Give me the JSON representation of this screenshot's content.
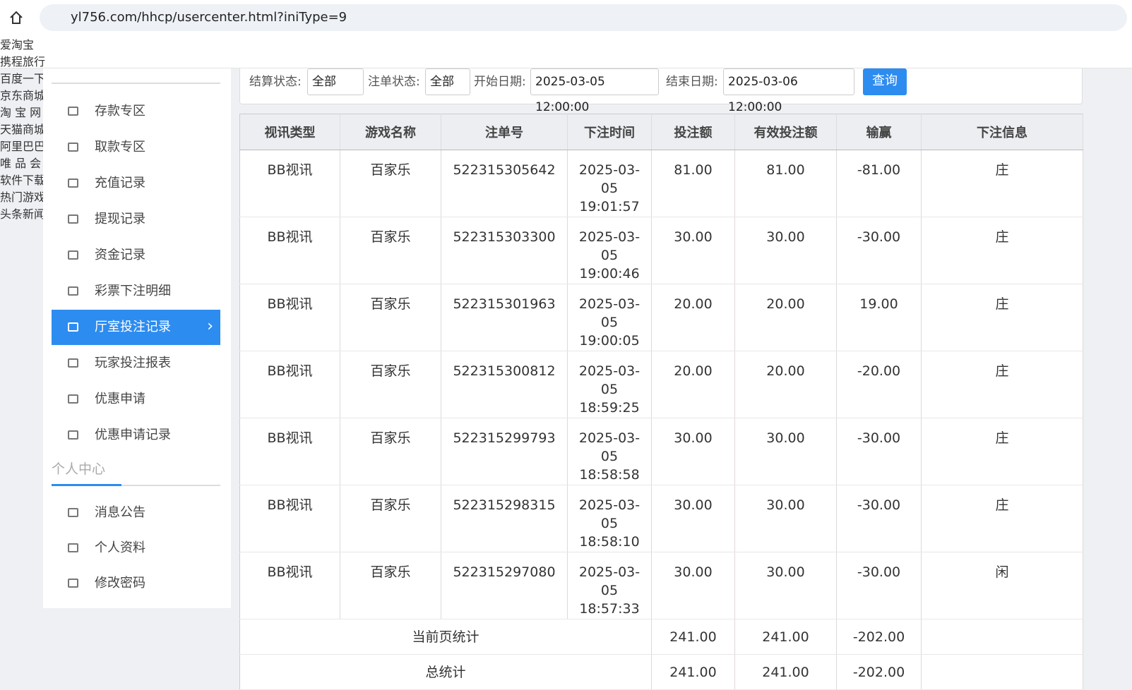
{
  "browser": {
    "url": "yl756.com/hhcp/usercenter.html?iniType=9",
    "bookmarks": [
      "爱淘宝",
      "携程旅行",
      "百度一下",
      "京东商城",
      "淘 宝 网",
      "天猫商城",
      "阿里巴巴",
      "唯 品 会",
      "软件下载",
      "热门游戏",
      "头条新闻"
    ]
  },
  "sidebar": {
    "menu": [
      "存款专区",
      "取款专区",
      "充值记录",
      "提现记录",
      "资金记录",
      "彩票下注明细",
      "厅室投注记录",
      "玩家投注报表",
      "优惠申请",
      "优惠申请记录"
    ],
    "active": 6,
    "section": "个人中心",
    "personal": [
      "消息公告",
      "个人资料",
      "修改密码"
    ]
  },
  "filters": {
    "settle_label": "结算状态:",
    "settle_value": "全部",
    "order_label": "注单状态:",
    "order_value": "全部",
    "start_label": "开始日期:",
    "start_value": "2025-03-05 12:00:00",
    "end_label": "结束日期:",
    "end_value": "2025-03-06 12:00:00",
    "button": "查询"
  },
  "table": {
    "headers": [
      "视讯类型",
      "游戏名称",
      "注单号",
      "下注时间",
      "投注额",
      "有效投注额",
      "输赢",
      "下注信息"
    ],
    "rows": [
      [
        "BB视讯",
        "百家乐",
        "522315305642",
        "2025-03-05 19:01:57",
        "81.00",
        "81.00",
        "-81.00",
        "庄"
      ],
      [
        "BB视讯",
        "百家乐",
        "522315303300",
        "2025-03-05 19:00:46",
        "30.00",
        "30.00",
        "-30.00",
        "庄"
      ],
      [
        "BB视讯",
        "百家乐",
        "522315301963",
        "2025-03-05 19:00:05",
        "20.00",
        "20.00",
        "19.00",
        "庄"
      ],
      [
        "BB视讯",
        "百家乐",
        "522315300812",
        "2025-03-05 18:59:25",
        "20.00",
        "20.00",
        "-20.00",
        "庄"
      ],
      [
        "BB视讯",
        "百家乐",
        "522315299793",
        "2025-03-05 18:58:58",
        "30.00",
        "30.00",
        "-30.00",
        "庄"
      ],
      [
        "BB视讯",
        "百家乐",
        "522315298315",
        "2025-03-05 18:58:10",
        "30.00",
        "30.00",
        "-30.00",
        "庄"
      ],
      [
        "BB视讯",
        "百家乐",
        "522315297080",
        "2025-03-05 18:57:33",
        "30.00",
        "30.00",
        "-30.00",
        "闲"
      ]
    ],
    "page_total": {
      "label": "当前页统计",
      "values": [
        "241.00",
        "241.00",
        "-202.00"
      ]
    },
    "grand_total": {
      "label": "总统计",
      "values": [
        "241.00",
        "241.00",
        "-202.00"
      ]
    }
  }
}
